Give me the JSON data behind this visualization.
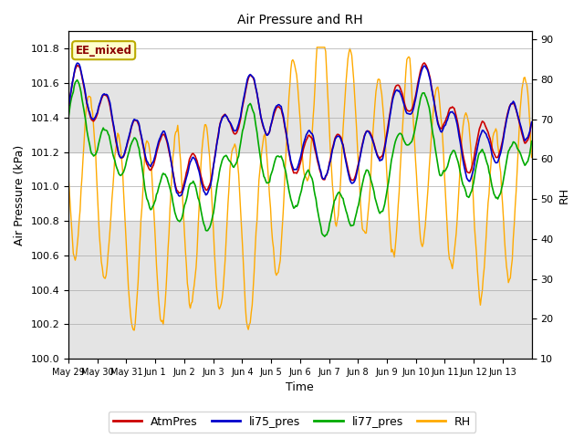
{
  "title": "Air Pressure and RH",
  "xlabel": "Time",
  "ylabel_left": "Air Pressure (kPa)",
  "ylabel_right": "RH",
  "annotation": "EE_mixed",
  "ylim_left": [
    100.0,
    101.9
  ],
  "ylim_right": [
    10,
    92
  ],
  "yticks_left": [
    100.0,
    100.2,
    100.4,
    100.6,
    100.8,
    101.0,
    101.2,
    101.4,
    101.6,
    101.8
  ],
  "yticks_right": [
    10,
    20,
    30,
    40,
    50,
    60,
    70,
    80,
    90
  ],
  "colors": {
    "AtmPres": "#cc0000",
    "li75_pres": "#0000cc",
    "li77_pres": "#00aa00",
    "RH": "#ffaa00"
  },
  "band_color": "#d3d3d3",
  "band_alpha": 0.6,
  "x_tick_labels": [
    "May 29",
    "May 30",
    "May 31",
    "Jun 1",
    "Jun 2",
    "Jun 3",
    "Jun 4",
    "Jun 5",
    "Jun 6",
    "Jun 7",
    "Jun 8",
    "Jun 9",
    "Jun 10",
    "Jun 11",
    "Jun 12",
    "Jun 13"
  ],
  "n_points": 480,
  "seed": 42
}
